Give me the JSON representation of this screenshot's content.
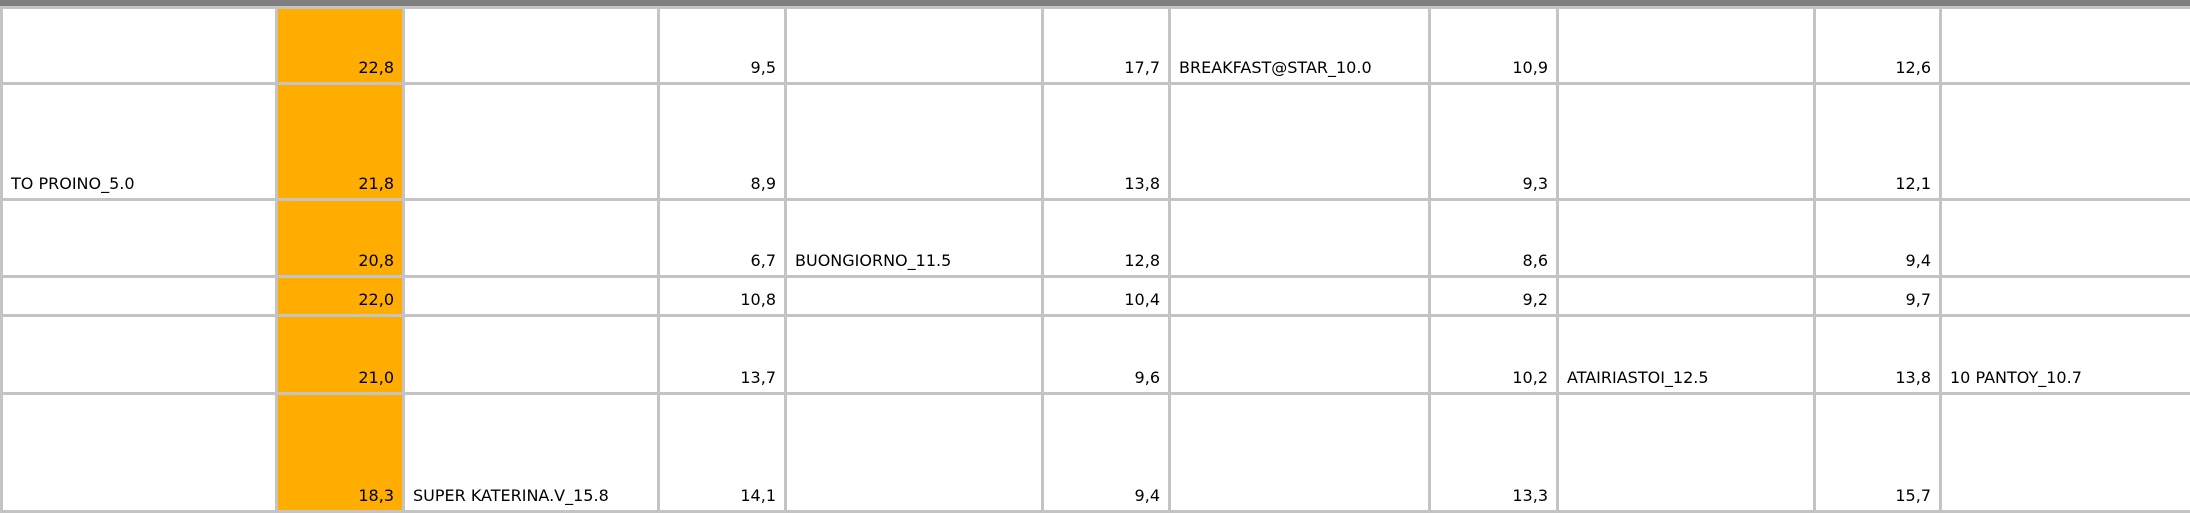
{
  "colors": {
    "highlight": "#ffad00",
    "grid": "#c4c4c4",
    "topbar": "#808080"
  },
  "rows": [
    [
      "",
      "22,8",
      "",
      "9,5",
      "",
      "17,7",
      "BREAKFAST@STAR_10.0",
      "10,9",
      "",
      "12,6",
      ""
    ],
    [
      "TO PROINO_5.0",
      "21,8",
      "",
      "8,9",
      "",
      "13,8",
      "",
      "9,3",
      "",
      "12,1",
      ""
    ],
    [
      "",
      "20,8",
      "",
      "6,7",
      "BUONGIORNO_11.5",
      "12,8",
      "",
      "8,6",
      "",
      "9,4",
      ""
    ],
    [
      "",
      "22,0",
      "",
      "10,8",
      "",
      "10,4",
      "",
      "9,2",
      "",
      "9,7",
      ""
    ],
    [
      "",
      "21,0",
      "",
      "13,7",
      "",
      "9,6",
      "",
      "10,2",
      "ATAIRIASTOI_12.5",
      "13,8",
      "10 PANTOY_10.7"
    ],
    [
      "",
      "18,3",
      "SUPER KATERINA.V_15.8",
      "14,1",
      "",
      "9,4",
      "",
      "13,3",
      "",
      "15,7",
      ""
    ]
  ]
}
